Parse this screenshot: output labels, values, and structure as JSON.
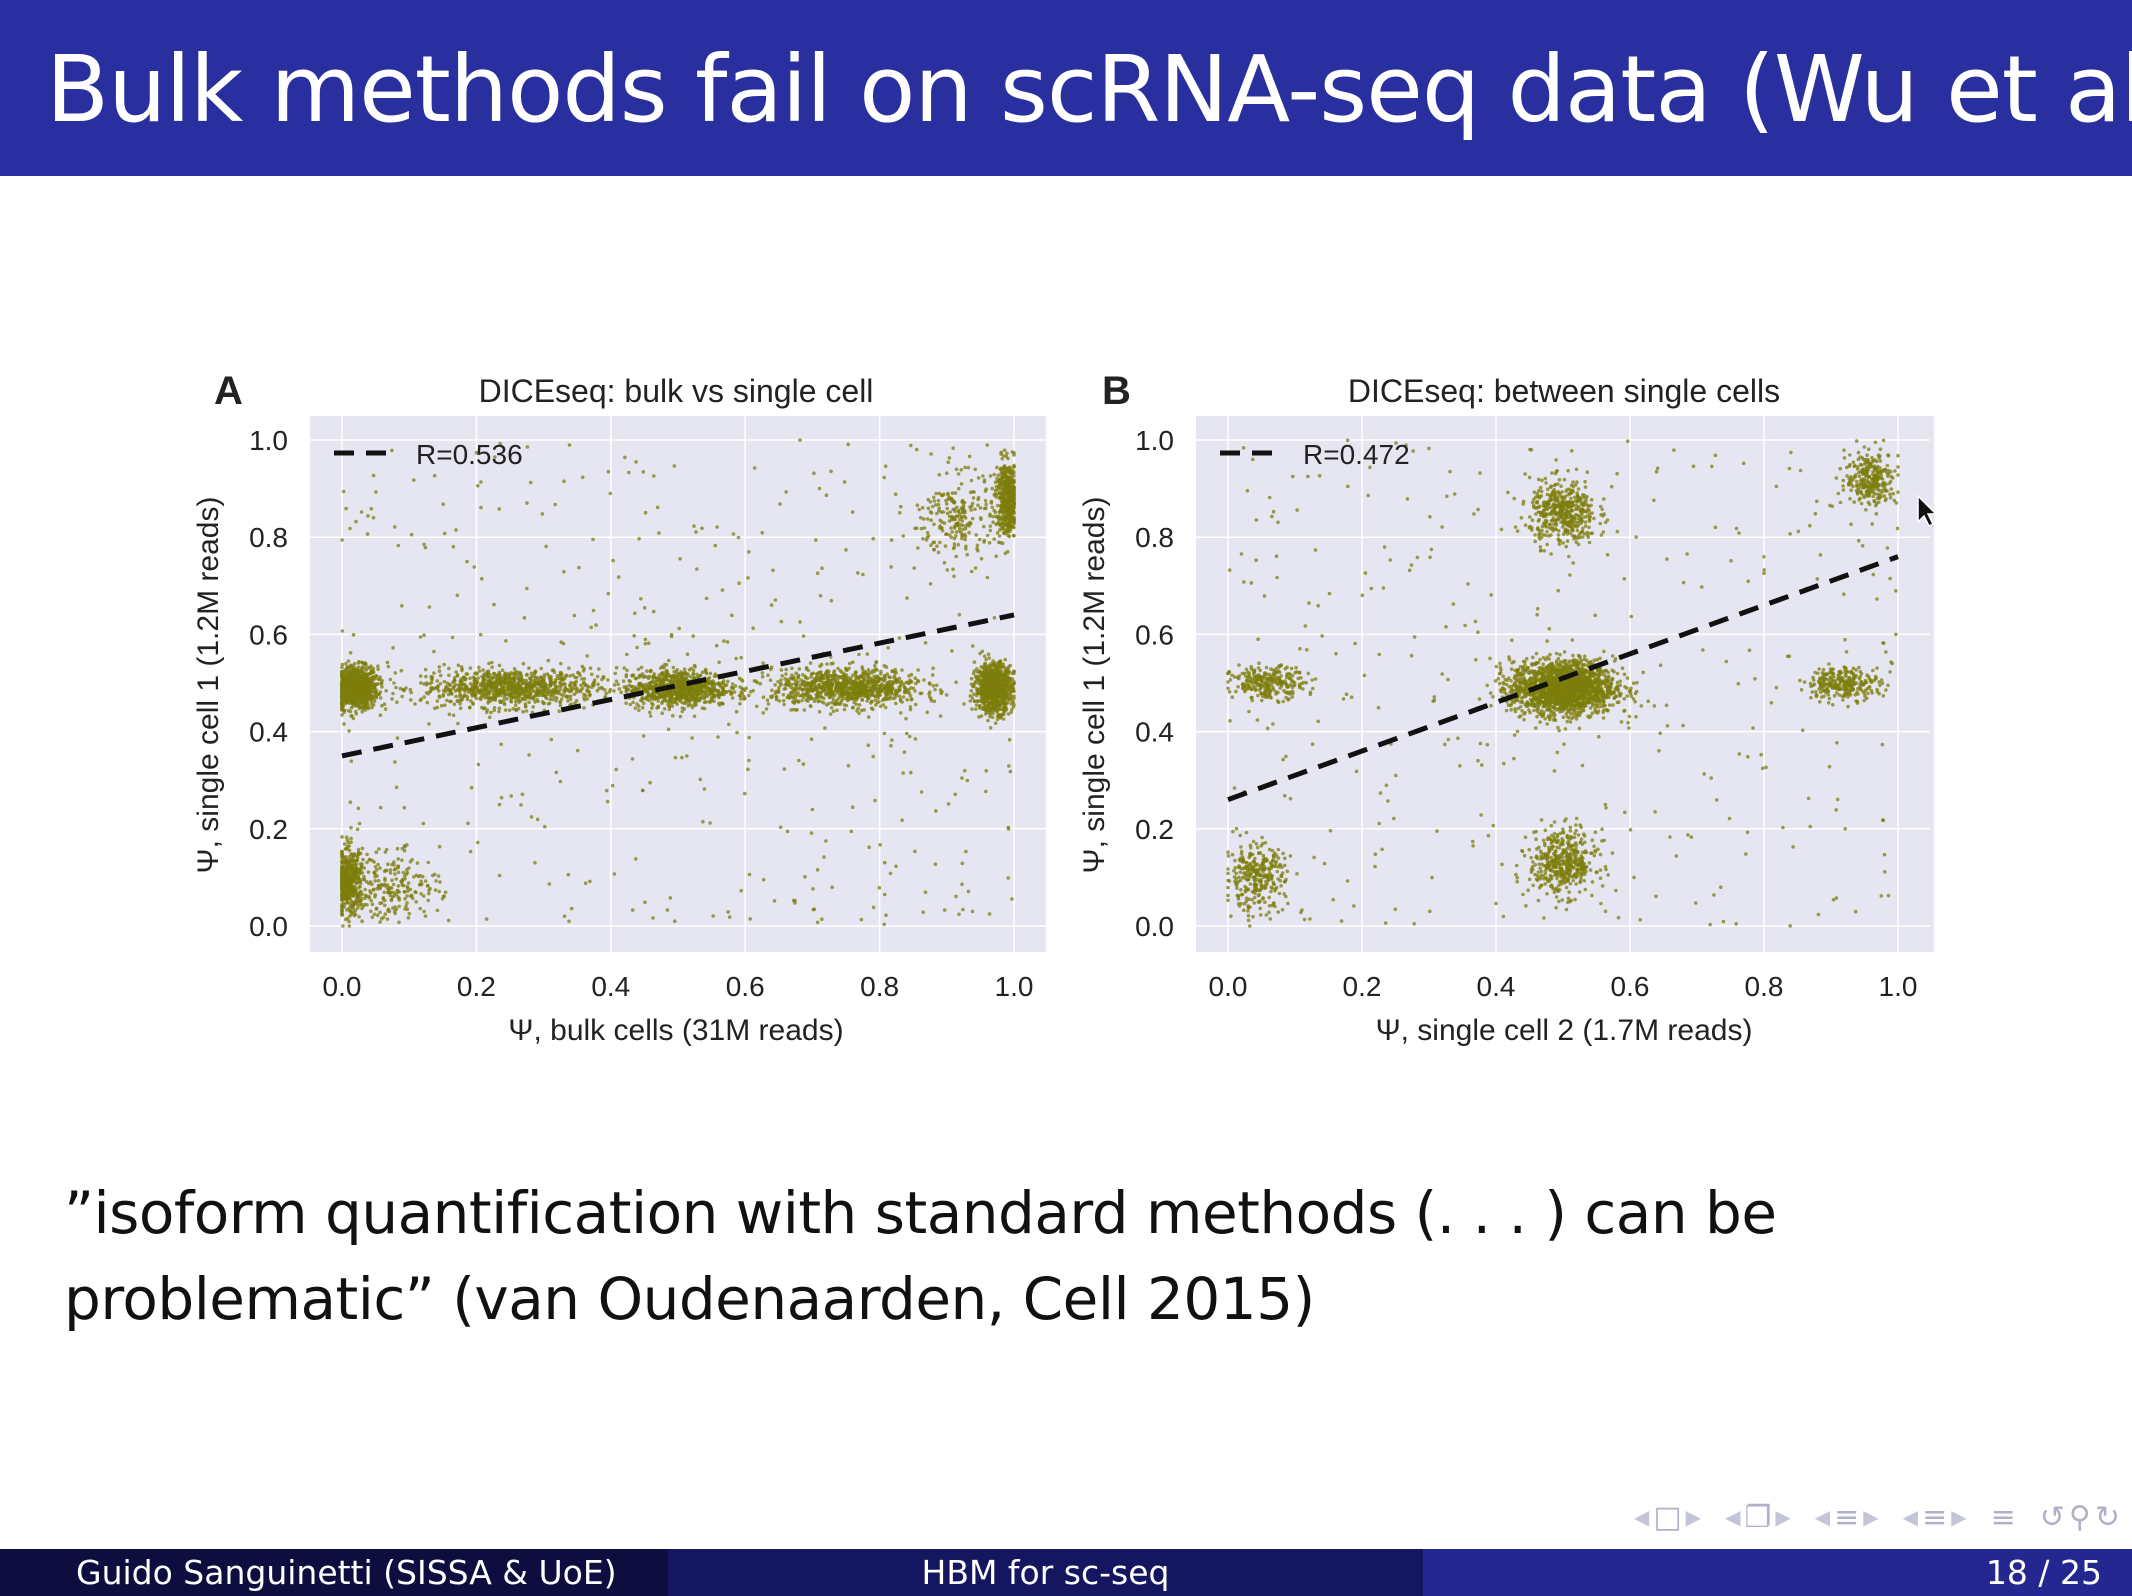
{
  "slide": {
    "title": "Bulk methods fail on scRNA-seq data (Wu et al)",
    "quote_line1": "”isoform quantification with standard methods (. . . ) can be",
    "quote_line2": "problematic” (van Oudenaarden, Cell 2015)"
  },
  "footer": {
    "author": "Guido Sanguinetti (SISSA & UoE)",
    "short_title": "HBM for sc-seq",
    "page": "18 / 25"
  },
  "navigation": {
    "icons": [
      "frame-nav-icon",
      "subsection-nav-icon",
      "section-nav-icon",
      "subsubsection-nav-icon",
      "toc-icon",
      "undo-icon",
      "search-icon",
      "redo-icon"
    ]
  },
  "colors": {
    "title_bar": "#2a2fa0",
    "plot_bg": "#e6e6f2",
    "points": "#7d7d0c",
    "regression_line": "#111111"
  },
  "chart_data": [
    {
      "type": "scatter",
      "panel_label": "A",
      "title": "DICEseq: bulk vs single cell",
      "xlabel": "Ψ, bulk cells (31M reads)",
      "ylabel": "Ψ, single cell 1 (1.2M reads)",
      "xlim": [
        0.0,
        1.0
      ],
      "ylim": [
        0.0,
        1.0
      ],
      "xticks": [
        "0.0",
        "0.2",
        "0.4",
        "0.6",
        "0.8",
        "1.0"
      ],
      "yticks": [
        "0.0",
        "0.2",
        "0.4",
        "0.6",
        "0.8",
        "1.0"
      ],
      "grid": true,
      "legend": {
        "label": "R=0.536",
        "position": "top-left"
      },
      "regression_line": {
        "x": [
          0.0,
          1.0
        ],
        "y": [
          0.35,
          0.64
        ]
      },
      "point_clusters": [
        {
          "x_center": 0.02,
          "y_center": 0.49,
          "x_spread": 0.03,
          "y_spread": 0.04,
          "count": 900
        },
        {
          "x_center": 0.25,
          "y_center": 0.49,
          "x_spread": 0.12,
          "y_spread": 0.035,
          "count": 900
        },
        {
          "x_center": 0.5,
          "y_center": 0.49,
          "x_spread": 0.07,
          "y_spread": 0.035,
          "count": 800
        },
        {
          "x_center": 0.75,
          "y_center": 0.49,
          "x_spread": 0.1,
          "y_spread": 0.035,
          "count": 900
        },
        {
          "x_center": 0.97,
          "y_center": 0.49,
          "x_spread": 0.025,
          "y_spread": 0.045,
          "count": 900
        },
        {
          "x_center": 0.01,
          "y_center": 0.09,
          "x_spread": 0.02,
          "y_spread": 0.06,
          "count": 500
        },
        {
          "x_center": 0.08,
          "y_center": 0.08,
          "x_spread": 0.06,
          "y_spread": 0.06,
          "count": 200
        },
        {
          "x_center": 0.99,
          "y_center": 0.88,
          "x_spread": 0.015,
          "y_spread": 0.07,
          "count": 450
        },
        {
          "x_center": 0.92,
          "y_center": 0.84,
          "x_spread": 0.05,
          "y_spread": 0.08,
          "count": 220
        },
        {
          "x_center": 0.5,
          "y_center": 0.5,
          "x_spread": 0.29,
          "y_spread": 0.29,
          "count": 420
        }
      ]
    },
    {
      "type": "scatter",
      "panel_label": "B",
      "title": "DICEseq: between single cells",
      "xlabel": "Ψ, single cell 2 (1.7M reads)",
      "ylabel": "Ψ, single cell 1 (1.2M reads)",
      "xlim": [
        0.0,
        1.0
      ],
      "ylim": [
        0.0,
        1.0
      ],
      "xticks": [
        "0.0",
        "0.2",
        "0.4",
        "0.6",
        "0.8",
        "1.0"
      ],
      "yticks": [
        "0.0",
        "0.2",
        "0.4",
        "0.6",
        "0.8",
        "1.0"
      ],
      "grid": true,
      "legend": {
        "label": "R=0.472",
        "position": "top-left"
      },
      "regression_line": {
        "x": [
          0.0,
          1.0
        ],
        "y": [
          0.26,
          0.76
        ]
      },
      "point_clusters": [
        {
          "x_center": 0.5,
          "y_center": 0.49,
          "x_spread": 0.07,
          "y_spread": 0.05,
          "count": 1800
        },
        {
          "x_center": 0.5,
          "y_center": 0.85,
          "x_spread": 0.045,
          "y_spread": 0.06,
          "count": 450
        },
        {
          "x_center": 0.5,
          "y_center": 0.13,
          "x_spread": 0.045,
          "y_spread": 0.06,
          "count": 450
        },
        {
          "x_center": 0.06,
          "y_center": 0.5,
          "x_spread": 0.05,
          "y_spread": 0.03,
          "count": 260
        },
        {
          "x_center": 0.92,
          "y_center": 0.5,
          "x_spread": 0.05,
          "y_spread": 0.03,
          "count": 260
        },
        {
          "x_center": 0.04,
          "y_center": 0.1,
          "x_spread": 0.04,
          "y_spread": 0.06,
          "count": 300
        },
        {
          "x_center": 0.96,
          "y_center": 0.92,
          "x_spread": 0.035,
          "y_spread": 0.05,
          "count": 280
        },
        {
          "x_center": 0.5,
          "y_center": 0.5,
          "x_spread": 0.29,
          "y_spread": 0.29,
          "count": 350
        }
      ]
    }
  ]
}
